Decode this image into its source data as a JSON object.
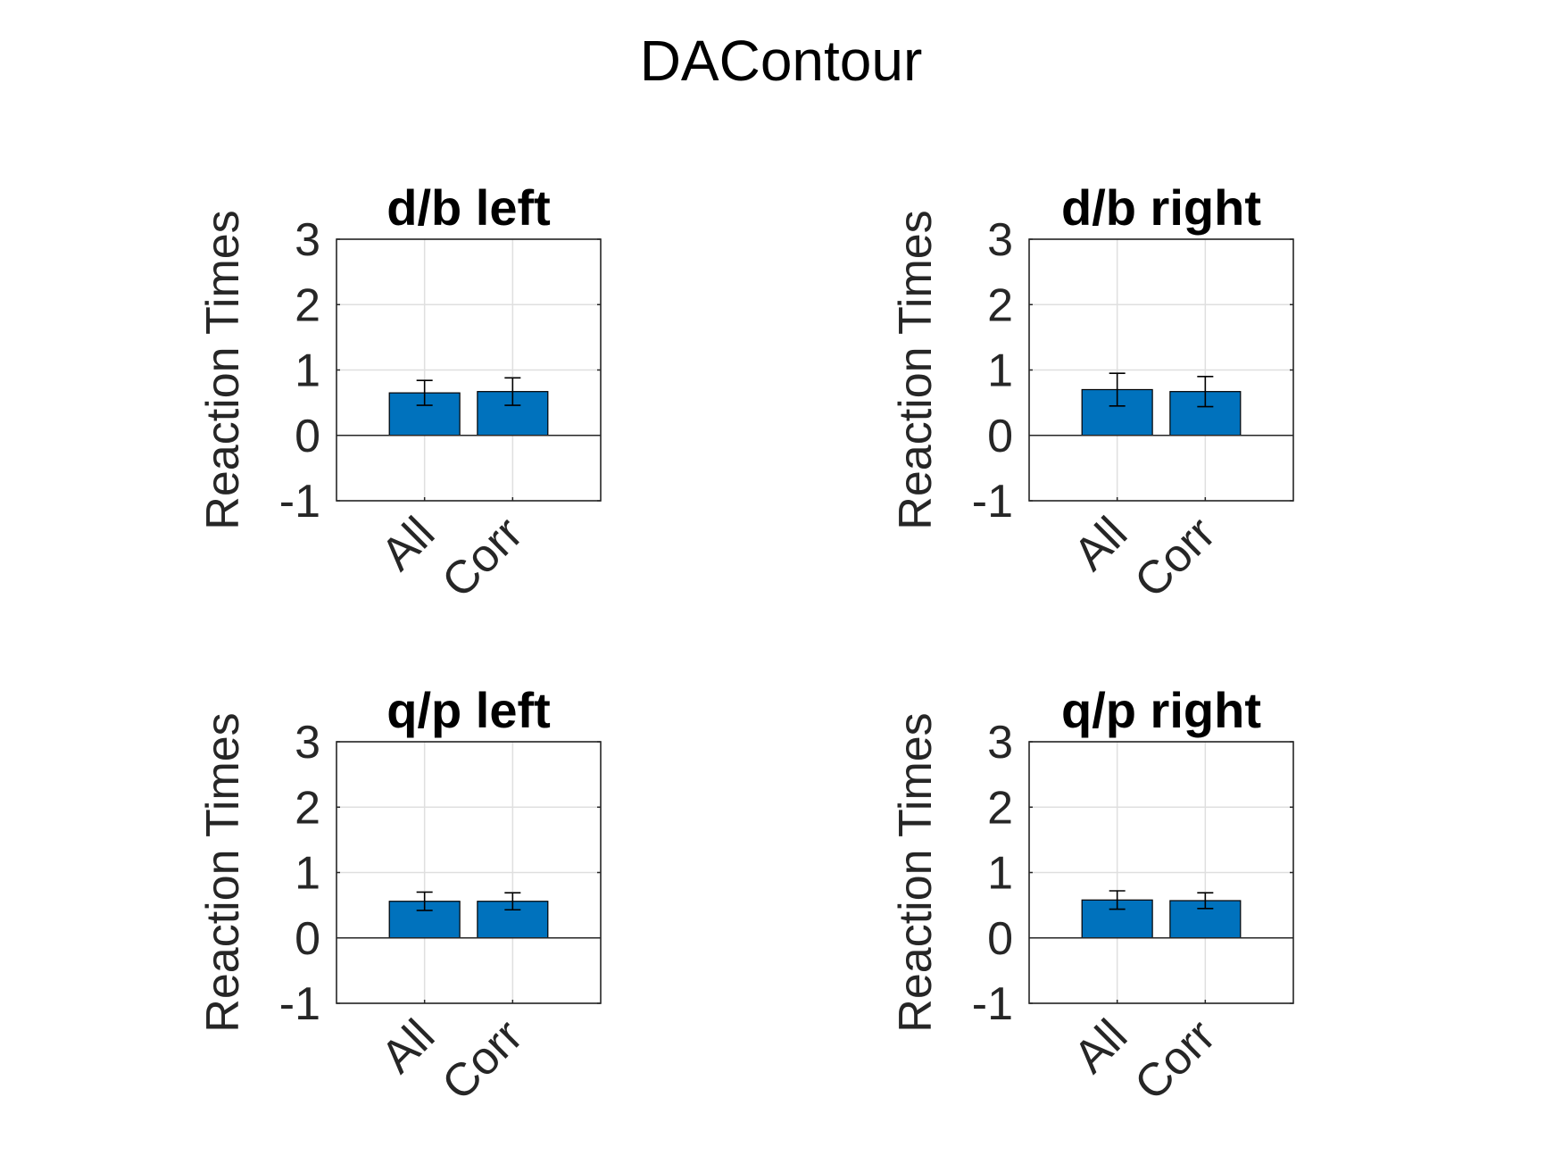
{
  "figure": {
    "title": "DAContour",
    "bar_color": "#0072BD",
    "axis_color": "#262626",
    "grid_color": "#DFDFDF"
  },
  "chart_data": [
    {
      "type": "bar",
      "title": "d/b left",
      "xlabel": "",
      "ylabel": "Reaction Times",
      "categories": [
        "All",
        "Corr"
      ],
      "values": [
        0.65,
        0.67
      ],
      "errors": [
        0.19,
        0.21
      ],
      "ylim": [
        -1,
        3
      ],
      "yticks": [
        "-1",
        "0",
        "1",
        "2",
        "3"
      ],
      "grid": true
    },
    {
      "type": "bar",
      "title": "d/b right",
      "xlabel": "",
      "ylabel": "Reaction Times",
      "categories": [
        "All",
        "Corr"
      ],
      "values": [
        0.7,
        0.67
      ],
      "errors": [
        0.25,
        0.23
      ],
      "ylim": [
        -1,
        3
      ],
      "yticks": [
        "-1",
        "0",
        "1",
        "2",
        "3"
      ],
      "grid": true
    },
    {
      "type": "bar",
      "title": "q/p left",
      "xlabel": "",
      "ylabel": "Reaction Times",
      "categories": [
        "All",
        "Corr"
      ],
      "values": [
        0.56,
        0.56
      ],
      "errors": [
        0.14,
        0.13
      ],
      "ylim": [
        -1,
        3
      ],
      "yticks": [
        "-1",
        "0",
        "1",
        "2",
        "3"
      ],
      "grid": true
    },
    {
      "type": "bar",
      "title": "q/p right",
      "xlabel": "",
      "ylabel": "Reaction Times",
      "categories": [
        "All",
        "Corr"
      ],
      "values": [
        0.58,
        0.57
      ],
      "errors": [
        0.14,
        0.12
      ],
      "ylim": [
        -1,
        3
      ],
      "yticks": [
        "-1",
        "0",
        "1",
        "2",
        "3"
      ],
      "grid": true
    }
  ]
}
